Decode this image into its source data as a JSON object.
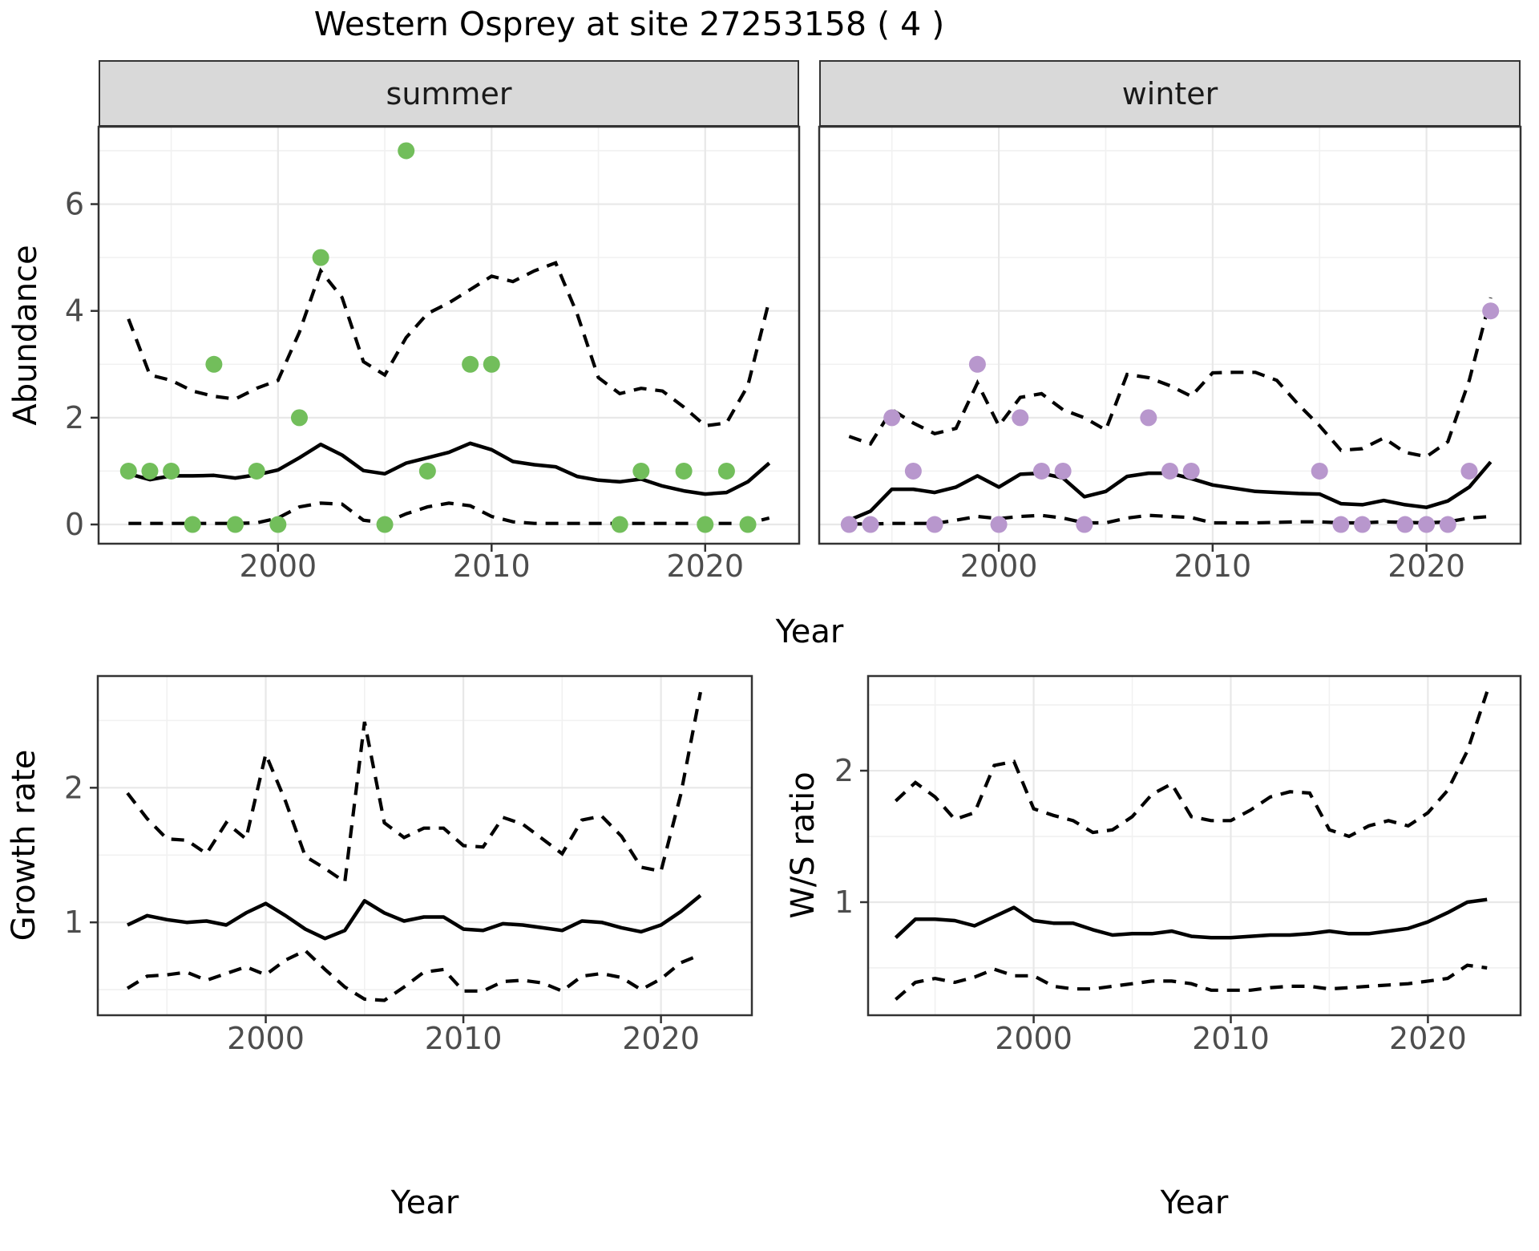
{
  "title": "Western Osprey at site 27253158 ( 4 )",
  "axis_titles": {
    "abundance": "Abundance",
    "year_top": "Year",
    "growth": "Growth rate",
    "year_growth": "Year",
    "ws": "W/S ratio",
    "year_ws": "Year"
  },
  "colors": {
    "summer_point": "#72BE5B",
    "winter_point": "#B897CD",
    "line": "#000000",
    "strip_fill": "#D9D9D9",
    "panel_border": "#333333",
    "grid_major": "#E8E8E8",
    "grid_minor": "#F1F1F1",
    "tick_label": "#4D4D4D"
  },
  "chart_data": [
    {
      "name": "abundance_summer",
      "type": "line",
      "facet": "summer",
      "ylabel": "Abundance",
      "xlabel": "Year",
      "legend_position": "none",
      "grid": true,
      "xticks": [
        2000,
        2010,
        2020
      ],
      "xtick_labels": [
        "2000",
        "2010",
        "2020"
      ],
      "yticks": [
        0,
        2,
        4,
        6
      ],
      "ytick_labels": [
        "0",
        "2",
        "4",
        "6"
      ],
      "xlim": [
        1991.6,
        2024.4
      ],
      "ylim": [
        -0.36,
        7.45
      ],
      "x": [
        1993,
        1994,
        1995,
        1996,
        1997,
        1998,
        1999,
        2000,
        2001,
        2002,
        2003,
        2004,
        2005,
        2006,
        2007,
        2008,
        2009,
        2010,
        2011,
        2012,
        2013,
        2014,
        2015,
        2016,
        2017,
        2018,
        2019,
        2020,
        2021,
        2022,
        2023
      ],
      "median": [
        0.95,
        0.84,
        0.91,
        0.91,
        0.92,
        0.87,
        0.93,
        1.02,
        1.25,
        1.5,
        1.3,
        1.01,
        0.95,
        1.15,
        1.25,
        1.35,
        1.52,
        1.4,
        1.18,
        1.12,
        1.08,
        0.9,
        0.83,
        0.8,
        0.85,
        0.72,
        0.63,
        0.57,
        0.6,
        0.8,
        1.15
      ],
      "upper_ci": [
        3.85,
        2.8,
        2.7,
        2.5,
        2.4,
        2.35,
        2.55,
        2.7,
        3.6,
        4.75,
        4.25,
        3.05,
        2.8,
        3.5,
        3.95,
        4.15,
        4.4,
        4.65,
        4.55,
        4.75,
        4.9,
        3.95,
        2.75,
        2.45,
        2.55,
        2.5,
        2.2,
        1.85,
        1.9,
        2.6,
        4.2
      ],
      "lower_ci": [
        0.02,
        0.02,
        0.02,
        0.02,
        0.02,
        0.02,
        0.03,
        0.12,
        0.33,
        0.4,
        0.38,
        0.08,
        0.03,
        0.2,
        0.33,
        0.4,
        0.35,
        0.15,
        0.05,
        0.02,
        0.02,
        0.02,
        0.02,
        0.02,
        0.02,
        0.02,
        0.02,
        0.02,
        0.02,
        0.02,
        0.12
      ],
      "observations": [
        [
          1993,
          1
        ],
        [
          1994,
          1
        ],
        [
          1995,
          1
        ],
        [
          1996,
          0
        ],
        [
          1997,
          3
        ],
        [
          1998,
          0
        ],
        [
          1999,
          1
        ],
        [
          2000,
          0
        ],
        [
          2001,
          2
        ],
        [
          2002,
          5
        ],
        [
          2005,
          0
        ],
        [
          2006,
          7
        ],
        [
          2007,
          1
        ],
        [
          2009,
          3
        ],
        [
          2010,
          3
        ],
        [
          2016,
          0
        ],
        [
          2017,
          1
        ],
        [
          2019,
          1
        ],
        [
          2020,
          0
        ],
        [
          2021,
          1
        ],
        [
          2022,
          0
        ]
      ],
      "point_color": "#72BE5B"
    },
    {
      "name": "abundance_winter",
      "type": "line",
      "facet": "winter",
      "ylabel": "Abundance",
      "xlabel": "Year",
      "legend_position": "none",
      "grid": true,
      "xticks": [
        2000,
        2010,
        2020
      ],
      "xtick_labels": [
        "2000",
        "2010",
        "2020"
      ],
      "yticks": [
        0,
        2,
        4,
        6
      ],
      "ytick_labels": [],
      "xlim": [
        1991.6,
        2024.4
      ],
      "ylim": [
        -0.36,
        7.45
      ],
      "x": [
        1993,
        1994,
        1995,
        1996,
        1997,
        1998,
        1999,
        2000,
        2001,
        2002,
        2003,
        2004,
        2005,
        2006,
        2007,
        2008,
        2009,
        2010,
        2011,
        2012,
        2013,
        2014,
        2015,
        2016,
        2017,
        2018,
        2019,
        2020,
        2021,
        2022,
        2023
      ],
      "median": [
        0.08,
        0.25,
        0.66,
        0.66,
        0.6,
        0.7,
        0.91,
        0.7,
        0.94,
        0.96,
        0.87,
        0.52,
        0.62,
        0.9,
        0.96,
        0.96,
        0.86,
        0.74,
        0.68,
        0.62,
        0.6,
        0.58,
        0.57,
        0.39,
        0.37,
        0.45,
        0.37,
        0.32,
        0.44,
        0.7,
        1.17
      ],
      "upper_ci": [
        1.65,
        1.51,
        2.15,
        1.9,
        1.7,
        1.8,
        2.65,
        1.85,
        2.38,
        2.45,
        2.15,
        2.0,
        1.77,
        2.81,
        2.75,
        2.6,
        2.4,
        2.84,
        2.85,
        2.85,
        2.7,
        2.25,
        1.85,
        1.39,
        1.42,
        1.62,
        1.35,
        1.27,
        1.55,
        2.7,
        4.25
      ],
      "lower_ci": [
        0.01,
        0.01,
        0.02,
        0.02,
        0.02,
        0.08,
        0.15,
        0.11,
        0.15,
        0.17,
        0.12,
        0.03,
        0.03,
        0.12,
        0.17,
        0.15,
        0.13,
        0.03,
        0.03,
        0.03,
        0.04,
        0.05,
        0.05,
        0.03,
        0.03,
        0.05,
        0.04,
        0.03,
        0.05,
        0.12,
        0.15
      ],
      "observations": [
        [
          1993,
          0
        ],
        [
          1994,
          0
        ],
        [
          1995,
          2
        ],
        [
          1996,
          1
        ],
        [
          1997,
          0
        ],
        [
          1999,
          3
        ],
        [
          2000,
          0
        ],
        [
          2001,
          2
        ],
        [
          2002,
          1
        ],
        [
          2003,
          1
        ],
        [
          2004,
          0
        ],
        [
          2007,
          2
        ],
        [
          2008,
          1
        ],
        [
          2009,
          1
        ],
        [
          2015,
          1
        ],
        [
          2016,
          0
        ],
        [
          2017,
          0
        ],
        [
          2019,
          0
        ],
        [
          2020,
          0
        ],
        [
          2021,
          0
        ],
        [
          2022,
          1
        ],
        [
          2023,
          4
        ]
      ],
      "point_color": "#B897CD"
    },
    {
      "name": "growth_rate",
      "type": "line",
      "facet": "",
      "ylabel": "Growth rate",
      "xlabel": "Year",
      "legend_position": "none",
      "grid": true,
      "xticks": [
        2000,
        2010,
        2020
      ],
      "xtick_labels": [
        "2000",
        "2010",
        "2020"
      ],
      "yticks": [
        1,
        2
      ],
      "ytick_labels": [
        "1",
        "2"
      ],
      "xlim": [
        1991.5,
        2024.6
      ],
      "ylim": [
        0.31,
        2.83
      ],
      "x": [
        1993,
        1994,
        1995,
        1996,
        1997,
        1998,
        1999,
        2000,
        2001,
        2002,
        2003,
        2004,
        2005,
        2006,
        2007,
        2008,
        2009,
        2010,
        2011,
        2012,
        2013,
        2014,
        2015,
        2016,
        2017,
        2018,
        2019,
        2020,
        2021,
        2022
      ],
      "median": [
        0.98,
        1.05,
        1.02,
        1.0,
        1.01,
        0.98,
        1.07,
        1.14,
        1.05,
        0.95,
        0.88,
        0.94,
        1.16,
        1.07,
        1.01,
        1.04,
        1.04,
        0.95,
        0.94,
        0.99,
        0.98,
        0.96,
        0.94,
        1.01,
        1.0,
        0.96,
        0.93,
        0.98,
        1.08,
        1.2
      ],
      "upper_ci": [
        1.96,
        1.77,
        1.62,
        1.61,
        1.51,
        1.74,
        1.62,
        2.25,
        1.9,
        1.49,
        1.4,
        1.3,
        2.49,
        1.74,
        1.63,
        1.7,
        1.7,
        1.57,
        1.56,
        1.78,
        1.73,
        1.62,
        1.51,
        1.76,
        1.79,
        1.64,
        1.41,
        1.38,
        1.95,
        2.71
      ],
      "lower_ci": [
        0.51,
        0.6,
        0.61,
        0.63,
        0.57,
        0.62,
        0.67,
        0.61,
        0.72,
        0.79,
        0.65,
        0.52,
        0.43,
        0.42,
        0.52,
        0.63,
        0.65,
        0.49,
        0.49,
        0.56,
        0.57,
        0.55,
        0.49,
        0.6,
        0.62,
        0.59,
        0.5,
        0.58,
        0.7,
        0.76
      ],
      "observations": [],
      "point_color": "#000000"
    },
    {
      "name": "ws_ratio",
      "type": "line",
      "facet": "",
      "ylabel": "W/S ratio",
      "xlabel": "Year",
      "legend_position": "none",
      "grid": true,
      "xticks": [
        2000,
        2010,
        2020
      ],
      "xtick_labels": [
        "2000",
        "2010",
        "2020"
      ],
      "yticks": [
        1,
        2
      ],
      "ytick_labels": [
        "1",
        "2"
      ],
      "xlim": [
        1991.6,
        2024.7
      ],
      "ylim": [
        0.14,
        2.72
      ],
      "x": [
        1993,
        1994,
        1995,
        1996,
        1997,
        1998,
        1999,
        2000,
        2001,
        2002,
        2003,
        2004,
        2005,
        2006,
        2007,
        2008,
        2009,
        2010,
        2011,
        2012,
        2013,
        2014,
        2015,
        2016,
        2017,
        2018,
        2019,
        2020,
        2021,
        2022,
        2023
      ],
      "median": [
        0.73,
        0.87,
        0.87,
        0.86,
        0.82,
        0.89,
        0.96,
        0.86,
        0.84,
        0.84,
        0.79,
        0.75,
        0.76,
        0.76,
        0.78,
        0.74,
        0.73,
        0.73,
        0.74,
        0.75,
        0.75,
        0.76,
        0.78,
        0.76,
        0.76,
        0.78,
        0.8,
        0.85,
        0.92,
        1.0,
        1.02
      ],
      "upper_ci": [
        1.77,
        1.91,
        1.8,
        1.63,
        1.68,
        2.04,
        2.07,
        1.71,
        1.66,
        1.62,
        1.53,
        1.55,
        1.65,
        1.82,
        1.9,
        1.65,
        1.62,
        1.62,
        1.7,
        1.8,
        1.84,
        1.83,
        1.55,
        1.5,
        1.58,
        1.62,
        1.58,
        1.68,
        1.85,
        2.15,
        2.6
      ],
      "lower_ci": [
        0.26,
        0.39,
        0.42,
        0.39,
        0.43,
        0.49,
        0.44,
        0.44,
        0.36,
        0.34,
        0.34,
        0.36,
        0.38,
        0.4,
        0.4,
        0.38,
        0.33,
        0.33,
        0.33,
        0.35,
        0.36,
        0.36,
        0.34,
        0.35,
        0.36,
        0.37,
        0.38,
        0.4,
        0.42,
        0.52,
        0.5
      ],
      "observations": [],
      "point_color": "#000000"
    }
  ]
}
